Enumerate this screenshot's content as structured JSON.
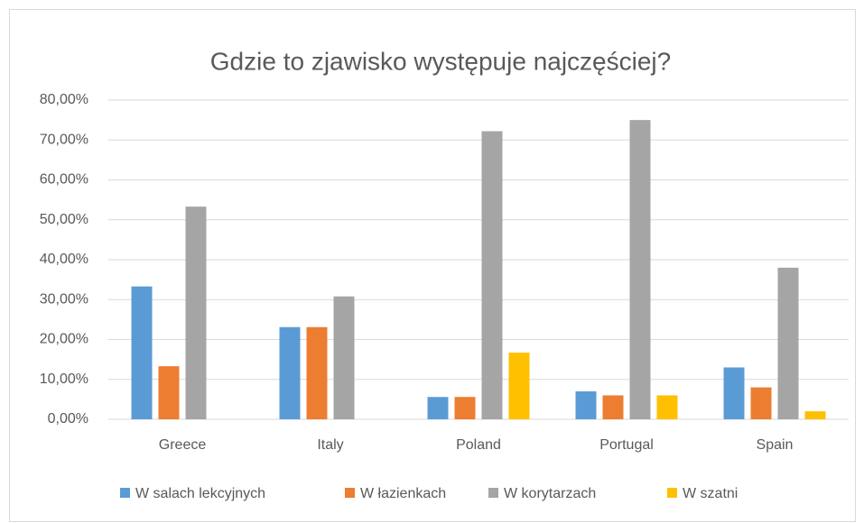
{
  "chart_data": {
    "type": "bar",
    "title": "Gdzie to zjawisko występuje najczęściej?",
    "categories": [
      "Greece",
      "Italy",
      "Poland",
      "Portugal",
      "Spain"
    ],
    "series": [
      {
        "name": "W salach lekcyjnych",
        "color": "#5b9bd5",
        "values": [
          33.3,
          23.1,
          5.6,
          7.0,
          13.0
        ]
      },
      {
        "name": "W łazienkach",
        "color": "#ed7d31",
        "values": [
          13.3,
          23.1,
          5.6,
          6.0,
          8.0
        ]
      },
      {
        "name": "W korytarzach",
        "color": "#a5a5a5",
        "values": [
          53.3,
          30.8,
          72.2,
          75.0,
          38.0
        ]
      },
      {
        "name": "W szatni",
        "color": "#ffc000",
        "values": [
          0,
          0,
          16.7,
          6.0,
          2.0
        ]
      }
    ],
    "ylim": [
      0,
      80
    ],
    "yticks": [
      {
        "value": 0,
        "label": "0,00%"
      },
      {
        "value": 10,
        "label": "10,00%"
      },
      {
        "value": 20,
        "label": "20,00%"
      },
      {
        "value": 30,
        "label": "30,00%"
      },
      {
        "value": 40,
        "label": "40,00%"
      },
      {
        "value": 50,
        "label": "50,00%"
      },
      {
        "value": 60,
        "label": "60,00%"
      },
      {
        "value": 70,
        "label": "70,00%"
      },
      {
        "value": 80,
        "label": "80,00%"
      }
    ],
    "grid": true,
    "legend": "bottom"
  }
}
